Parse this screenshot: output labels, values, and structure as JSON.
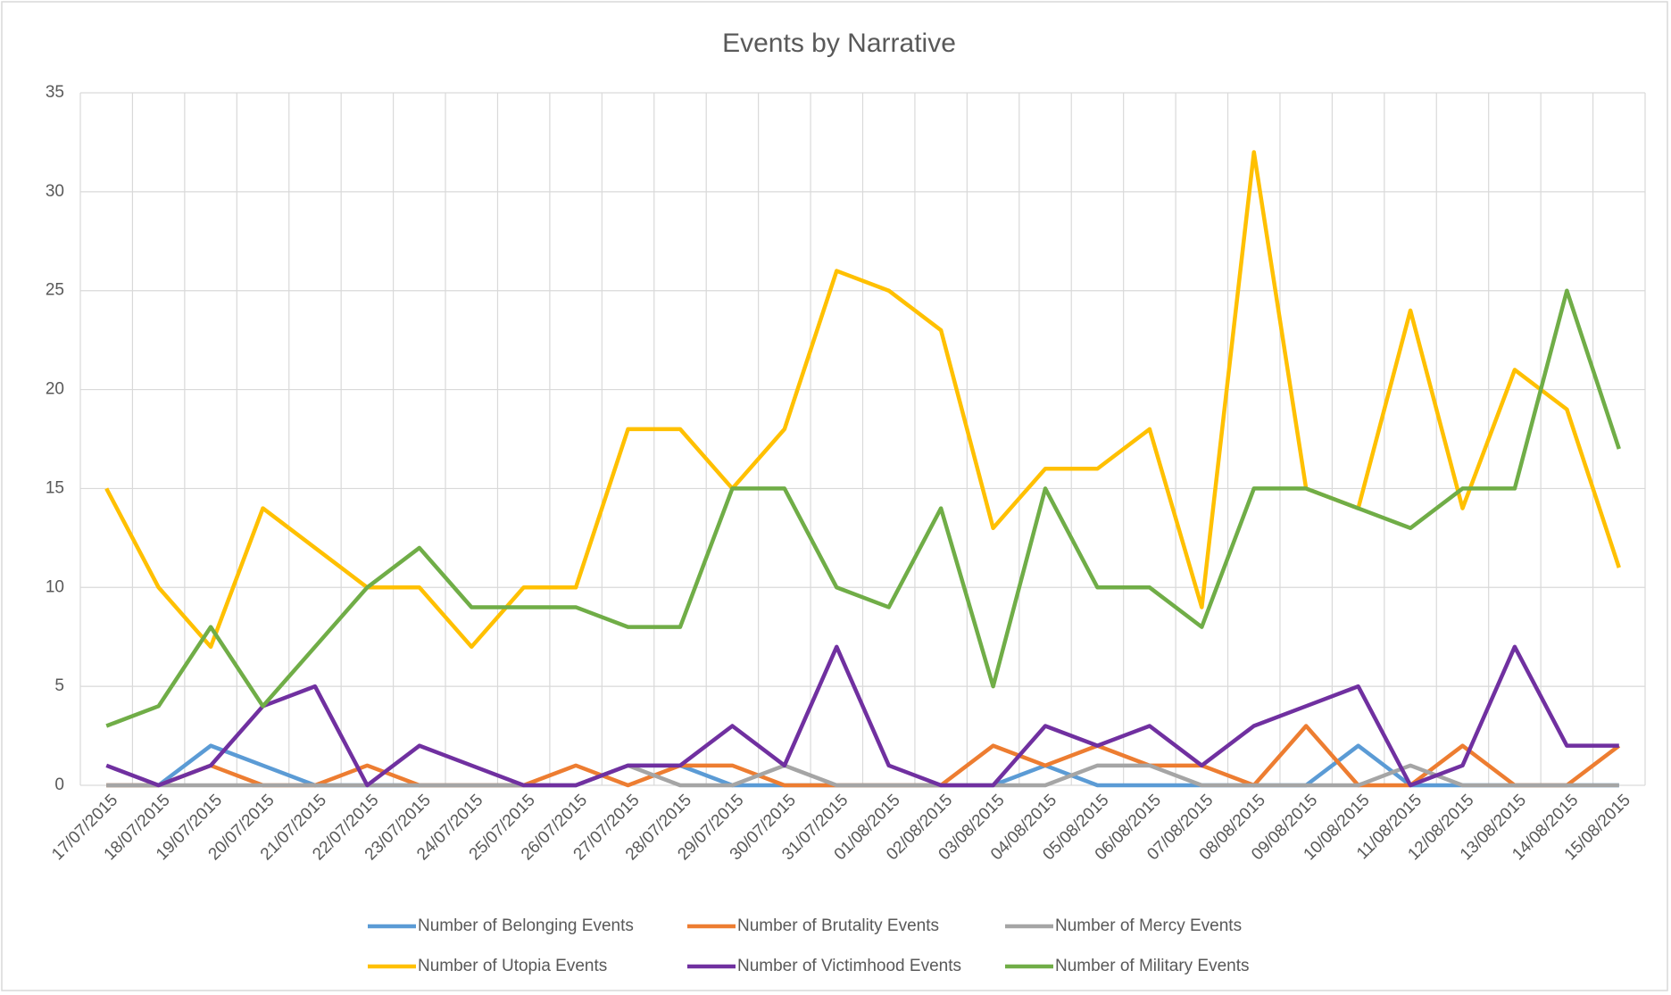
{
  "chart_data": {
    "type": "line",
    "title": "Events by Narrative",
    "categories": [
      "17/07/2015",
      "18/07/2015",
      "19/07/2015",
      "20/07/2015",
      "21/07/2015",
      "22/07/2015",
      "23/07/2015",
      "24/07/2015",
      "25/07/2015",
      "26/07/2015",
      "27/07/2015",
      "28/07/2015",
      "29/07/2015",
      "30/07/2015",
      "31/07/2015",
      "01/08/2015",
      "02/08/2015",
      "03/08/2015",
      "04/08/2015",
      "05/08/2015",
      "06/08/2015",
      "07/08/2015",
      "08/08/2015",
      "09/08/2015",
      "10/08/2015",
      "11/08/2015",
      "12/08/2015",
      "13/08/2015",
      "14/08/2015",
      "15/08/2015"
    ],
    "series": [
      {
        "name": "Number of Belonging Events",
        "color": "#5b9bd5",
        "values": [
          0,
          0,
          2,
          1,
          0,
          0,
          0,
          0,
          0,
          0,
          1,
          1,
          0,
          0,
          0,
          0,
          0,
          0,
          1,
          0,
          0,
          0,
          0,
          0,
          2,
          0,
          0,
          0,
          0,
          0
        ]
      },
      {
        "name": "Number of Brutality Events",
        "color": "#ed7d31",
        "values": [
          0,
          0,
          1,
          0,
          0,
          1,
          0,
          0,
          0,
          1,
          0,
          1,
          1,
          0,
          0,
          0,
          0,
          2,
          1,
          2,
          1,
          1,
          0,
          3,
          0,
          0,
          2,
          0,
          0,
          2
        ]
      },
      {
        "name": "Number of Mercy Events",
        "color": "#a5a5a5",
        "values": [
          0,
          0,
          0,
          0,
          0,
          0,
          0,
          0,
          0,
          0,
          1,
          0,
          0,
          1,
          0,
          0,
          0,
          0,
          0,
          1,
          1,
          0,
          0,
          0,
          0,
          1,
          0,
          0,
          0,
          0
        ]
      },
      {
        "name": "Number of Utopia Events",
        "color": "#ffc000",
        "values": [
          15,
          10,
          7,
          14,
          12,
          10,
          10,
          7,
          10,
          10,
          18,
          18,
          15,
          18,
          26,
          25,
          23,
          13,
          16,
          16,
          18,
          9,
          32,
          15,
          14,
          24,
          14,
          21,
          19,
          11
        ]
      },
      {
        "name": "Number of Victimhood Events",
        "color": "#7030a0",
        "values": [
          1,
          0,
          1,
          4,
          5,
          0,
          2,
          1,
          0,
          0,
          1,
          1,
          3,
          1,
          7,
          1,
          0,
          0,
          3,
          2,
          3,
          1,
          3,
          4,
          5,
          0,
          1,
          7,
          2,
          2
        ]
      },
      {
        "name": "Number of Military Events",
        "color": "#70ad47",
        "values": [
          3,
          4,
          8,
          4,
          7,
          10,
          12,
          9,
          9,
          9,
          8,
          8,
          15,
          15,
          10,
          9,
          14,
          5,
          15,
          10,
          10,
          8,
          15,
          15,
          14,
          13,
          15,
          15,
          25,
          17
        ]
      }
    ],
    "ylim": [
      0,
      35
    ],
    "yticks": [
      0,
      5,
      10,
      15,
      20,
      25,
      30,
      35
    ],
    "grid": true,
    "legend": "bottom"
  }
}
